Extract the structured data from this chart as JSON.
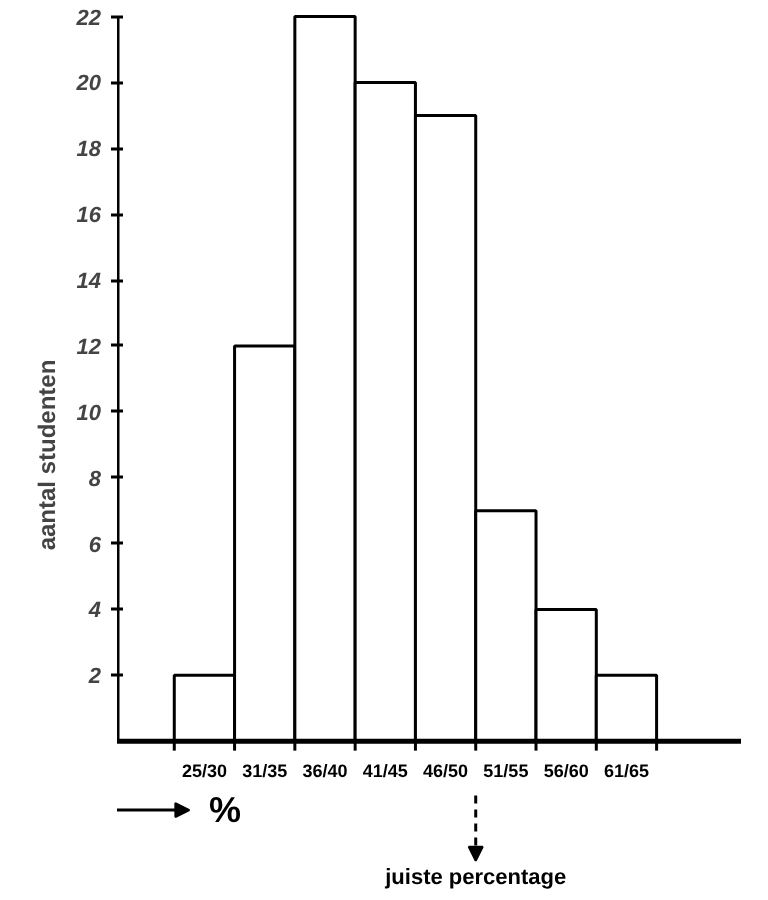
{
  "chart_data": {
    "type": "bar",
    "ylabel": "aantal studenten",
    "xlabel": "%",
    "categories": [
      "25/30",
      "31/35",
      "36/40",
      "41/45",
      "46/50",
      "51/55",
      "56/60",
      "61/65"
    ],
    "values": [
      2,
      12,
      22,
      20,
      19,
      7,
      4,
      2
    ],
    "color": "#ffffff",
    "ylim": [
      0,
      22
    ],
    "yticks": [
      2,
      4,
      6,
      8,
      10,
      12,
      14,
      16,
      18,
      20,
      22
    ],
    "annotations": [
      "juiste percentage"
    ],
    "grid": false,
    "legend": false
  }
}
